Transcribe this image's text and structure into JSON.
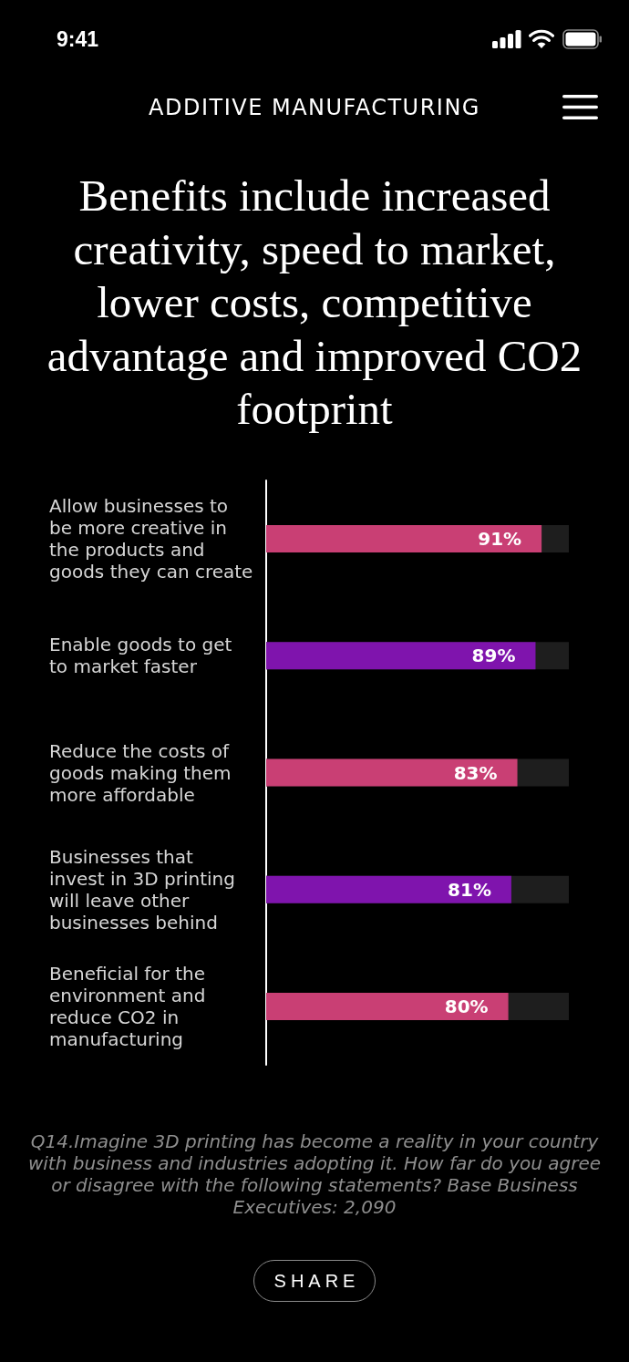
{
  "chart_data": {
    "type": "bar",
    "orientation": "horizontal",
    "title": "Benefits include increased creativity, speed to market, lower costs, competitive advantage and improved CO2 footprint",
    "categories": [
      "Allow businesses to be more creative in the products and goods they can create",
      "Enable goods to get to market faster",
      "Reduce the costs of goods making them more affordable",
      "Businesses that invest in 3D printing will leave other businesses behind",
      "Beneficial for the environment and reduce CO2 in manufacturing"
    ],
    "values": [
      91,
      89,
      83,
      81,
      80
    ],
    "value_labels": [
      "91%",
      "89%",
      "83%",
      "81%",
      "80%"
    ],
    "colors": [
      "#c93f74",
      "#7f14ad",
      "#c93f74",
      "#7f14ad",
      "#c93f74"
    ],
    "xlim": [
      0,
      100
    ],
    "tick_labels": "y",
    "annotations": [
      "9:41",
      "ADDITIVE MANUFACTURING",
      "Q14.Imagine 3D printing has become a reality in your country with business and industries adopting it. How far do you agree or disagree with the following statements? Base Business Executives: 2,090",
      "SHARE"
    ]
  }
}
